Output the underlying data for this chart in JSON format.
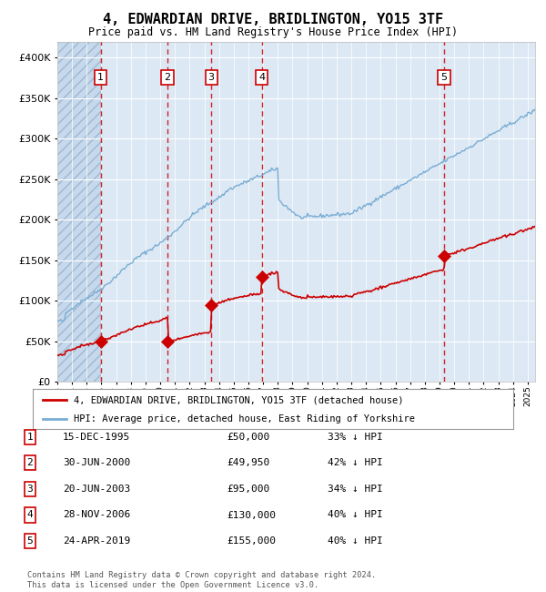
{
  "title": "4, EDWARDIAN DRIVE, BRIDLINGTON, YO15 3TF",
  "subtitle": "Price paid vs. HM Land Registry's House Price Index (HPI)",
  "footer": "Contains HM Land Registry data © Crown copyright and database right 2024.\nThis data is licensed under the Open Government Licence v3.0.",
  "legend_line1": "4, EDWARDIAN DRIVE, BRIDLINGTON, YO15 3TF (detached house)",
  "legend_line2": "HPI: Average price, detached house, East Riding of Yorkshire",
  "table": [
    {
      "num": "1",
      "date": "15-DEC-1995",
      "price": "£50,000",
      "note": "33% ↓ HPI"
    },
    {
      "num": "2",
      "date": "30-JUN-2000",
      "price": "£49,950",
      "note": "42% ↓ HPI"
    },
    {
      "num": "3",
      "date": "20-JUN-2003",
      "price": "£95,000",
      "note": "34% ↓ HPI"
    },
    {
      "num": "4",
      "date": "28-NOV-2006",
      "price": "£130,000",
      "note": "40% ↓ HPI"
    },
    {
      "num": "5",
      "date": "24-APR-2019",
      "price": "£155,000",
      "note": "40% ↓ HPI"
    }
  ],
  "sales": [
    {
      "year": 1995.96,
      "price": 50000
    },
    {
      "year": 2000.5,
      "price": 49950
    },
    {
      "year": 2003.47,
      "price": 95000
    },
    {
      "year": 2006.91,
      "price": 130000
    },
    {
      "year": 2019.31,
      "price": 155000
    }
  ],
  "ylim": [
    0,
    420000
  ],
  "xlim_start": 1993,
  "xlim_end": 2025.5,
  "plot_bg": "#dce8f4",
  "hatch_bg": "#c5d8ec",
  "red_color": "#cc0000",
  "blue_color": "#7aadd4",
  "grid_color": "#ffffff",
  "vline_color": "#cc0000"
}
